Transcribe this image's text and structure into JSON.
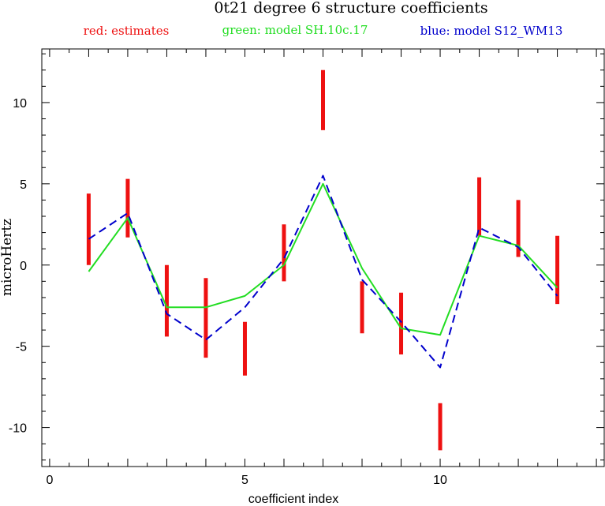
{
  "chart_data": {
    "type": "line",
    "title": "0t21 degree 6 structure coefficients",
    "legend": [
      {
        "label": "red: estimates",
        "color": "#ee1111"
      },
      {
        "label": "green: model SH.10c.17",
        "color": "#22dd22"
      },
      {
        "label": "blue: model S12_WM13",
        "color": "#0000cc"
      }
    ],
    "xlabel": "coefficient index",
    "ylabel": "microHertz",
    "xlim": [
      -0.2,
      14.2
    ],
    "ylim": [
      -12.4,
      13.3
    ],
    "xticks": [
      0,
      5,
      10
    ],
    "xtick_labels": [
      "0",
      "5",
      "10"
    ],
    "yticks": [
      -10,
      -5,
      0,
      5,
      10
    ],
    "ytick_labels": [
      "-10",
      "-5",
      "0",
      "5",
      "10"
    ],
    "estimates": [
      {
        "x": 1,
        "low": 0.0,
        "high": 4.4
      },
      {
        "x": 2,
        "low": 1.7,
        "high": 5.3
      },
      {
        "x": 3,
        "low": -4.4,
        "high": 0.0
      },
      {
        "x": 4,
        "low": -5.7,
        "high": -0.8
      },
      {
        "x": 5,
        "low": -6.8,
        "high": -3.5
      },
      {
        "x": 6,
        "low": -1.0,
        "high": 2.5
      },
      {
        "x": 7,
        "low": 8.3,
        "high": 12.0
      },
      {
        "x": 8,
        "low": -4.2,
        "high": -1.0
      },
      {
        "x": 9,
        "low": -5.5,
        "high": -1.7
      },
      {
        "x": 10,
        "low": -11.4,
        "high": -8.5
      },
      {
        "x": 11,
        "low": 1.8,
        "high": 5.4
      },
      {
        "x": 12,
        "low": 0.5,
        "high": 4.0
      },
      {
        "x": 13,
        "low": -2.4,
        "high": 1.8
      }
    ],
    "series": [
      {
        "name": "model SH.10c.17",
        "color": "#22dd22",
        "dashed": false,
        "x": [
          1,
          2,
          3,
          4,
          5,
          6,
          7,
          8,
          9,
          10,
          11,
          12,
          13
        ],
        "values": [
          -0.4,
          2.9,
          -2.6,
          -2.6,
          -1.9,
          0.0,
          5.0,
          -0.2,
          -3.9,
          -4.3,
          1.8,
          1.2,
          -1.4
        ]
      },
      {
        "name": "model S12_WM13",
        "color": "#0000cc",
        "dashed": true,
        "x": [
          1,
          2,
          3,
          4,
          5,
          6,
          7,
          8,
          9,
          10,
          11,
          12,
          13
        ],
        "values": [
          1.6,
          3.2,
          -3.0,
          -4.6,
          -2.6,
          0.4,
          5.5,
          -0.9,
          -3.5,
          -6.3,
          2.3,
          1.1,
          -1.9
        ]
      }
    ]
  }
}
